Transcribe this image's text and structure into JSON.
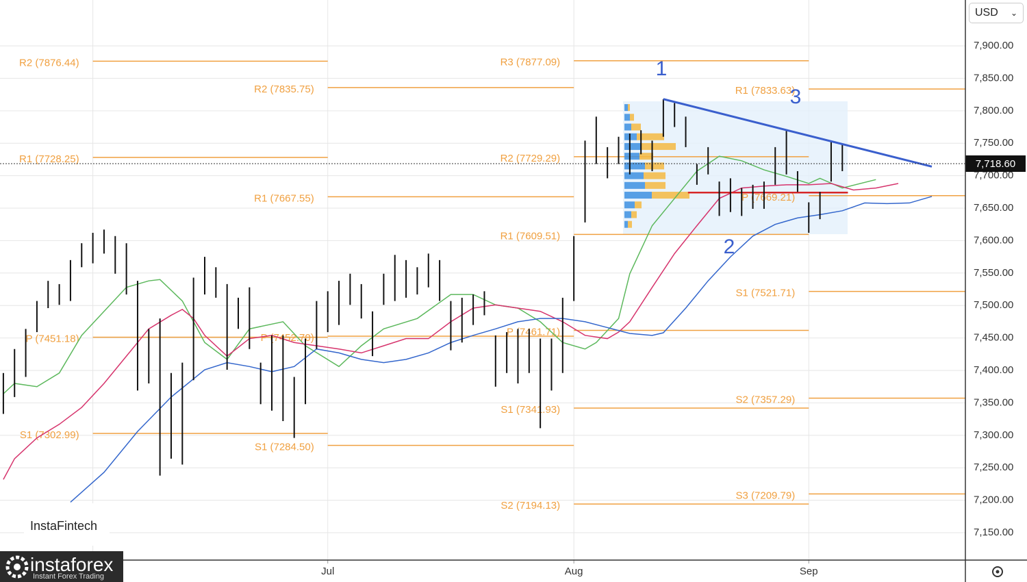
{
  "currency": "USD",
  "watermark": "InstaFintech",
  "logo": {
    "name": "instaforex",
    "tagline": "Instant Forex Trading"
  },
  "chart_data": {
    "type": "ohlc",
    "xlim": [
      -0.3,
      86.0
    ],
    "ylim": [
      7107.8,
      7970.7
    ],
    "grid": true,
    "xticks": [
      {
        "value": 8,
        "label": null
      },
      {
        "value": 29,
        "label": "Jul"
      },
      {
        "value": 51,
        "label": "Aug"
      },
      {
        "value": 72,
        "label": "Sep"
      }
    ],
    "yticks": [
      {
        "value": 7150,
        "label": "7,150.00"
      },
      {
        "value": 7200,
        "label": "7,200.00"
      },
      {
        "value": 7250,
        "label": "7,250.00"
      },
      {
        "value": 7300,
        "label": "7,300.00"
      },
      {
        "value": 7350,
        "label": "7,350.00"
      },
      {
        "value": 7400,
        "label": "7,400.00"
      },
      {
        "value": 7450,
        "label": "7,450.00"
      },
      {
        "value": 7500,
        "label": "7,500.00"
      },
      {
        "value": 7550,
        "label": "7,550.00"
      },
      {
        "value": 7600,
        "label": "7,600.00"
      },
      {
        "value": 7650,
        "label": "7,650.00"
      },
      {
        "value": 7700,
        "label": "7,700.00"
      },
      {
        "value": 7750,
        "label": "7,750.00"
      },
      {
        "value": 7800,
        "label": "7,800.00"
      },
      {
        "value": 7850,
        "label": "7,850.00"
      },
      {
        "value": 7900,
        "label": "7,900.00"
      }
    ],
    "bars": {
      "color": "#111111",
      "x": [
        0,
        1,
        2,
        3,
        4,
        5,
        6,
        7,
        8,
        9,
        10,
        11,
        12,
        13,
        14,
        15,
        16,
        17,
        18,
        19,
        20,
        21,
        22,
        23,
        24,
        25,
        26,
        27,
        28,
        29,
        30,
        31,
        32,
        33,
        34,
        35,
        36,
        37,
        38,
        39,
        40,
        41,
        42,
        43,
        44,
        45,
        46,
        47,
        48,
        49,
        50,
        51,
        52,
        53,
        54,
        55,
        56,
        57,
        58,
        59,
        60,
        61,
        62,
        63,
        64,
        65,
        66,
        67,
        68,
        69,
        70,
        71,
        72,
        73,
        74,
        75
      ],
      "high": [
        7396,
        7433,
        7464,
        7507,
        7538,
        7533,
        7570,
        7596,
        7612,
        7617,
        7607,
        7596,
        7538,
        7464,
        7480,
        7396,
        7412,
        7543,
        7575,
        7559,
        7533,
        7512,
        7528,
        7412,
        7454,
        7454,
        7390,
        7449,
        7507,
        7522,
        7538,
        7549,
        7533,
        7491,
        7549,
        7578,
        7570,
        7559,
        7580,
        7570,
        7507,
        7512,
        7517,
        7522,
        7454,
        7459,
        7464,
        7464,
        7449,
        7449,
        7512,
        7607,
        7754,
        7791,
        7744,
        7760,
        7765,
        7770,
        7754,
        7818,
        7812,
        7791,
        7718,
        7744,
        7691,
        7696,
        7681,
        7686,
        7691,
        7744,
        7770,
        7707,
        7659,
        7675,
        7754,
        7749
      ],
      "low": [
        7333,
        7359,
        7390,
        7459,
        7496,
        7501,
        7507,
        7559,
        7565,
        7580,
        7549,
        7517,
        7369,
        7380,
        7238,
        7264,
        7255,
        7385,
        7517,
        7512,
        7401,
        7464,
        7433,
        7348,
        7338,
        7322,
        7296,
        7348,
        7433,
        7459,
        7470,
        7501,
        7480,
        7422,
        7501,
        7507,
        7512,
        7517,
        7528,
        7507,
        7431,
        7443,
        7470,
        7485,
        7375,
        7396,
        7380,
        7396,
        7311,
        7369,
        7396,
        7507,
        7628,
        7718,
        7696,
        7718,
        7702,
        7733,
        7707,
        7760,
        7775,
        7744,
        7686,
        7702,
        7638,
        7644,
        7638,
        7649,
        7649,
        7686,
        7702,
        7675,
        7612,
        7633,
        7691,
        7707
      ]
    },
    "lines": [
      {
        "color": "#5cb85c",
        "x": [
          0,
          1,
          3,
          5,
          7,
          9,
          11,
          13,
          14,
          16,
          18,
          20,
          22,
          25,
          27,
          30,
          32,
          34,
          37,
          40,
          42,
          44,
          46,
          48,
          50,
          52,
          53,
          55,
          56,
          58,
          60,
          62,
          64,
          66,
          68,
          70,
          72,
          73,
          75,
          78
        ],
        "values": [
          7364,
          7380,
          7375,
          7396,
          7454,
          7491,
          7528,
          7538,
          7540,
          7507,
          7443,
          7417,
          7464,
          7475,
          7438,
          7406,
          7438,
          7464,
          7480,
          7517,
          7517,
          7501,
          7496,
          7475,
          7443,
          7433,
          7443,
          7480,
          7549,
          7623,
          7665,
          7707,
          7730,
          7723,
          7709,
          7699,
          7688,
          7696,
          7681,
          7694
        ]
      },
      {
        "color": "#d6336c",
        "x": [
          0,
          1,
          3,
          5,
          7,
          9,
          11,
          13,
          15,
          16,
          17,
          18,
          20,
          22,
          24,
          26,
          28,
          30,
          32,
          34,
          36,
          38,
          40,
          42,
          44,
          46,
          48,
          50,
          52,
          54,
          55,
          56,
          58,
          60,
          62,
          64,
          66,
          68,
          70,
          72,
          74,
          76,
          78,
          80
        ],
        "values": [
          7232,
          7264,
          7296,
          7317,
          7343,
          7380,
          7422,
          7464,
          7485,
          7494,
          7480,
          7454,
          7422,
          7449,
          7454,
          7443,
          7438,
          7433,
          7427,
          7438,
          7449,
          7449,
          7475,
          7496,
          7501,
          7496,
          7491,
          7475,
          7454,
          7449,
          7459,
          7475,
          7528,
          7580,
          7623,
          7665,
          7681,
          7684,
          7686,
          7686,
          7688,
          7678,
          7681,
          7688
        ]
      },
      {
        "color": "#3366cc",
        "x": [
          6,
          9,
          12,
          15,
          18,
          20,
          22,
          24,
          26,
          28,
          30,
          32,
          34,
          36,
          38,
          40,
          42,
          44,
          46,
          48,
          50,
          52,
          54,
          56,
          58,
          59,
          61,
          63,
          65,
          67,
          69,
          71,
          73,
          75,
          77,
          79,
          81,
          83
        ],
        "values": [
          7197,
          7243,
          7306,
          7359,
          7401,
          7412,
          7406,
          7398,
          7406,
          7433,
          7427,
          7417,
          7412,
          7417,
          7427,
          7443,
          7454,
          7464,
          7475,
          7480,
          7480,
          7475,
          7466,
          7457,
          7454,
          7458,
          7496,
          7538,
          7575,
          7607,
          7625,
          7635,
          7640,
          7646,
          7658,
          7657,
          7658,
          7668
        ]
      }
    ],
    "trendline": {
      "color": "#3a5fcd",
      "x": [
        59,
        83
      ],
      "values": [
        7818,
        7714
      ]
    },
    "poc_line": {
      "color": "#d62728",
      "x": [
        61.2,
        75.5
      ],
      "values": [
        7674,
        7674
      ]
    },
    "pivot_color": "#f0a040",
    "pivots": [
      {
        "label": "R2 (7876.44)",
        "value": 7876.44,
        "x": [
          8,
          29
        ]
      },
      {
        "label": "R1 (7728.25)",
        "value": 7728.25,
        "x": [
          8,
          29
        ]
      },
      {
        "label": "P (7451.18)",
        "value": 7451.18,
        "x": [
          8,
          29
        ]
      },
      {
        "label": "S1 (7302.99)",
        "value": 7302.99,
        "x": [
          8,
          29
        ]
      },
      {
        "label": "R2 (7835.75)",
        "value": 7835.75,
        "x": [
          29,
          51
        ]
      },
      {
        "label": "R1 (7667.55)",
        "value": 7667.55,
        "x": [
          29,
          51
        ]
      },
      {
        "label": "P (7452.70)",
        "value": 7452.7,
        "x": [
          29,
          51
        ]
      },
      {
        "label": "S1 (7284.50)",
        "value": 7284.5,
        "x": [
          29,
          51
        ]
      },
      {
        "label": "R3 (7877.09)",
        "value": 7877.09,
        "x": [
          51,
          72
        ]
      },
      {
        "label": "R2 (7729.29)",
        "value": 7729.29,
        "x": [
          51,
          72
        ]
      },
      {
        "label": "R1 (7609.51)",
        "value": 7609.51,
        "x": [
          51,
          72
        ]
      },
      {
        "label": "P (7461.71)",
        "value": 7461.71,
        "x": [
          51,
          72
        ]
      },
      {
        "label": "S1 (7341.93)",
        "value": 7341.93,
        "x": [
          51,
          72
        ]
      },
      {
        "label": "S2 (7194.13)",
        "value": 7194.13,
        "x": [
          51,
          72
        ]
      },
      {
        "label": "R1 (7833.63)",
        "value": 7833.63,
        "x": [
          72,
          86
        ]
      },
      {
        "label": "P (7669.21)",
        "value": 7669.21,
        "x": [
          72,
          86
        ]
      },
      {
        "label": "S1 (7521.71)",
        "value": 7521.71,
        "x": [
          72,
          86
        ]
      },
      {
        "label": "S2 (7357.29)",
        "value": 7357.29,
        "x": [
          72,
          86
        ]
      },
      {
        "label": "S3 (7209.79)",
        "value": 7209.79,
        "x": [
          72,
          86
        ]
      }
    ],
    "last_price": {
      "value": 7718.6,
      "label": "7,718.60"
    },
    "annotations": [
      "1",
      "2",
      "3"
    ],
    "volume_profile": {
      "colors": [
        "#3d8fe0",
        "#f5b942"
      ],
      "prices": [
        7805,
        7790,
        7775,
        7760,
        7745,
        7730,
        7715,
        7700,
        7685,
        7670,
        7655,
        7640,
        7625
      ],
      "buy": [
        5,
        8,
        10,
        18,
        25,
        22,
        30,
        28,
        30,
        40,
        15,
        10,
        5
      ],
      "sell": [
        3,
        6,
        14,
        40,
        50,
        20,
        28,
        32,
        30,
        55,
        10,
        8,
        6
      ]
    }
  }
}
